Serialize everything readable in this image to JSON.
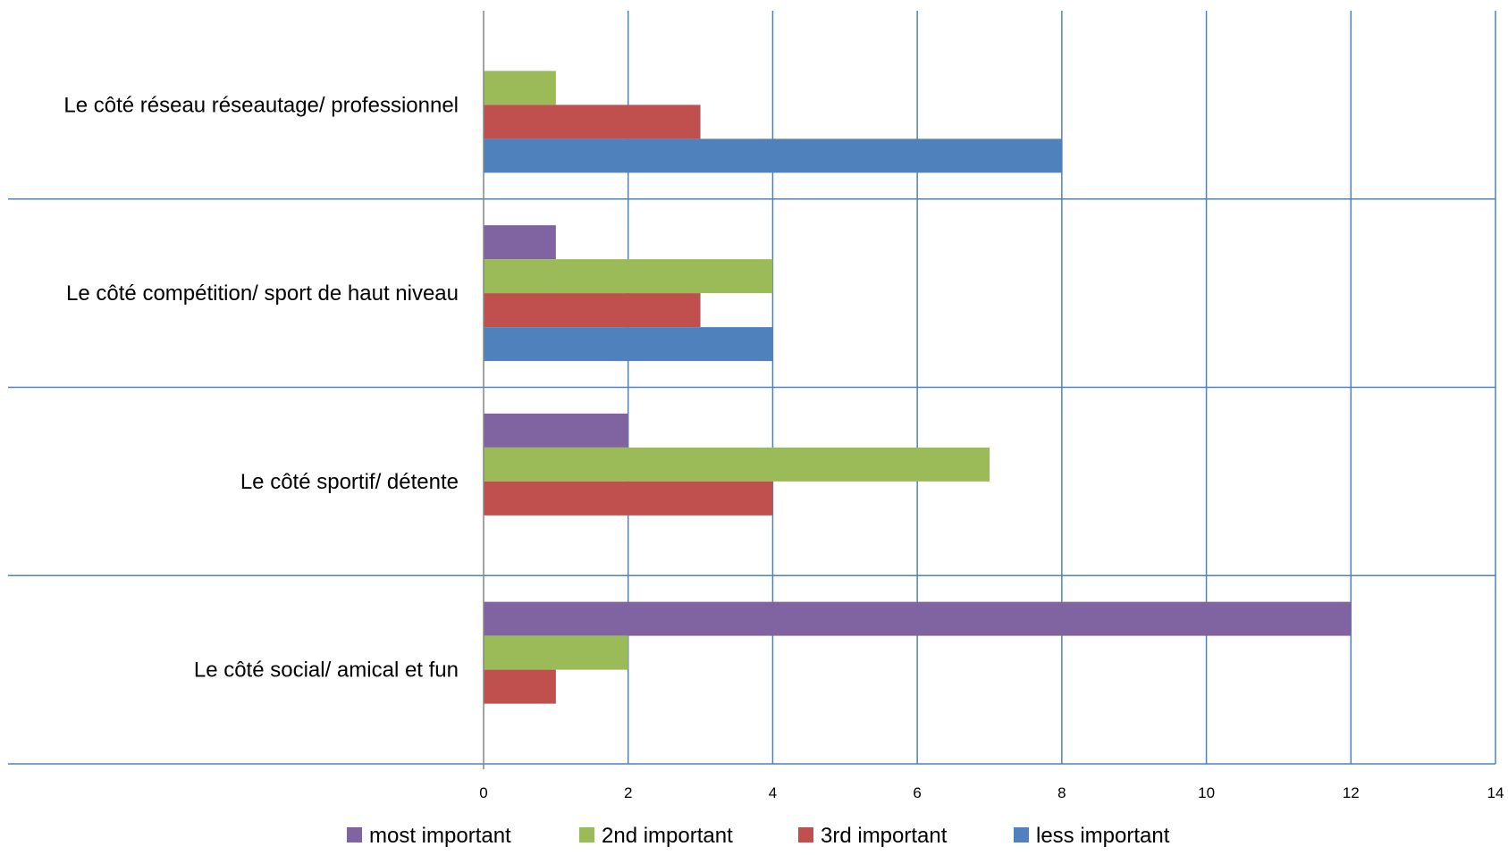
{
  "chart_data": {
    "type": "bar",
    "orientation": "horizontal",
    "categories": [
      "Le côté réseau réseautage/ professionnel",
      "Le côté compétition/ sport de haut niveau",
      "Le côté sportif/ détente",
      "Le côté social/ amical et fun"
    ],
    "series": [
      {
        "name": "most important",
        "color": "#8064A2",
        "values": [
          0,
          1,
          2,
          12
        ]
      },
      {
        "name": "2nd important",
        "color": "#9BBB59",
        "values": [
          1,
          4,
          7,
          2
        ]
      },
      {
        "name": "3rd important",
        "color": "#C0504D",
        "values": [
          3,
          3,
          4,
          1
        ]
      },
      {
        "name": "less important",
        "color": "#4F81BD",
        "values": [
          8,
          4,
          0,
          0
        ]
      }
    ],
    "xlim": [
      0,
      14
    ],
    "xticks": [
      "0",
      "2",
      "4",
      "6",
      "8",
      "10",
      "12",
      "14"
    ],
    "grid": true,
    "grid_color": "#4F81BD",
    "legend_position": "bottom"
  }
}
